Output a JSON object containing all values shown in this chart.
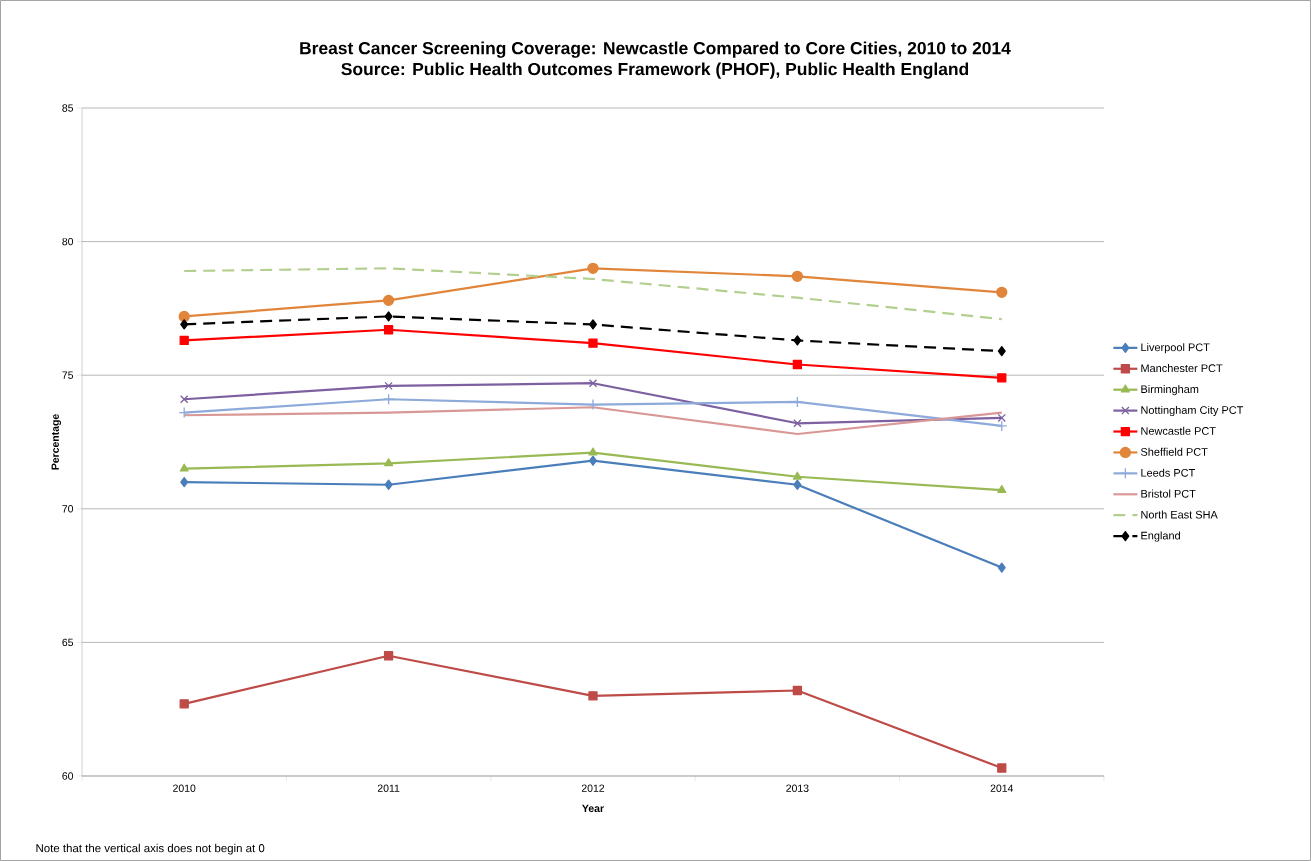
{
  "chart_data": {
    "type": "line",
    "title": "Breast Cancer Screening Coverage: Newcastle Compared to Core Cities, 2010 to 2014",
    "subtitle": "Source: Public Health Outcomes Framework (PHOF), Public Health England",
    "xlabel": "Year",
    "ylabel": "Percentage",
    "categories": [
      "2010",
      "2011",
      "2012",
      "2013",
      "2014"
    ],
    "ylim": [
      60,
      85
    ],
    "yticks": [
      60,
      65,
      70,
      75,
      80,
      85
    ],
    "grid": "y",
    "legend": "right",
    "annotations": [
      "Note that the vertical axis does not begin at 0"
    ],
    "series": [
      {
        "name": "Liverpool PCT",
        "color": "#4a7ebb",
        "marker": "diamond",
        "line_style": "solid",
        "values": [
          71.0,
          70.9,
          71.8,
          70.9,
          67.8
        ]
      },
      {
        "name": "Manchester PCT",
        "color": "#be4b48",
        "marker": "square",
        "line_style": "solid",
        "values": [
          62.7,
          64.5,
          63.0,
          63.2,
          60.3
        ]
      },
      {
        "name": "Birmingham",
        "color": "#98b954",
        "marker": "triangle",
        "line_style": "solid",
        "values": [
          71.5,
          71.7,
          72.1,
          71.2,
          70.7
        ]
      },
      {
        "name": "Nottingham City PCT",
        "color": "#7d60a0",
        "marker": "cross",
        "line_style": "solid",
        "values": [
          74.1,
          74.6,
          74.7,
          73.2,
          73.4
        ]
      },
      {
        "name": "Newcastle PCT",
        "color": "#ff0000",
        "marker": "square",
        "line_style": "solid",
        "values": [
          76.3,
          76.7,
          76.2,
          75.4,
          74.9
        ]
      },
      {
        "name": "Sheffield PCT",
        "color": "#e0853a",
        "marker": "circle",
        "line_style": "solid",
        "values": [
          77.2,
          77.8,
          79.0,
          78.7,
          78.1
        ]
      },
      {
        "name": "Leeds PCT",
        "color": "#8eaadb",
        "marker": "plus",
        "line_style": "solid",
        "values": [
          73.6,
          74.1,
          73.9,
          74.0,
          73.1
        ]
      },
      {
        "name": "Bristol PCT",
        "color": "#d99795",
        "marker": "none",
        "line_style": "solid",
        "values": [
          73.5,
          73.6,
          73.8,
          72.8,
          73.6
        ]
      },
      {
        "name": "North East SHA",
        "color": "#b3cf8f",
        "marker": "none",
        "line_style": "dashed",
        "values": [
          78.9,
          79.0,
          78.6,
          77.9,
          77.1
        ]
      },
      {
        "name": "England",
        "color": "#000000",
        "marker": "diamond",
        "line_style": "dashed",
        "values": [
          76.9,
          77.2,
          76.9,
          76.3,
          75.9
        ]
      }
    ]
  }
}
